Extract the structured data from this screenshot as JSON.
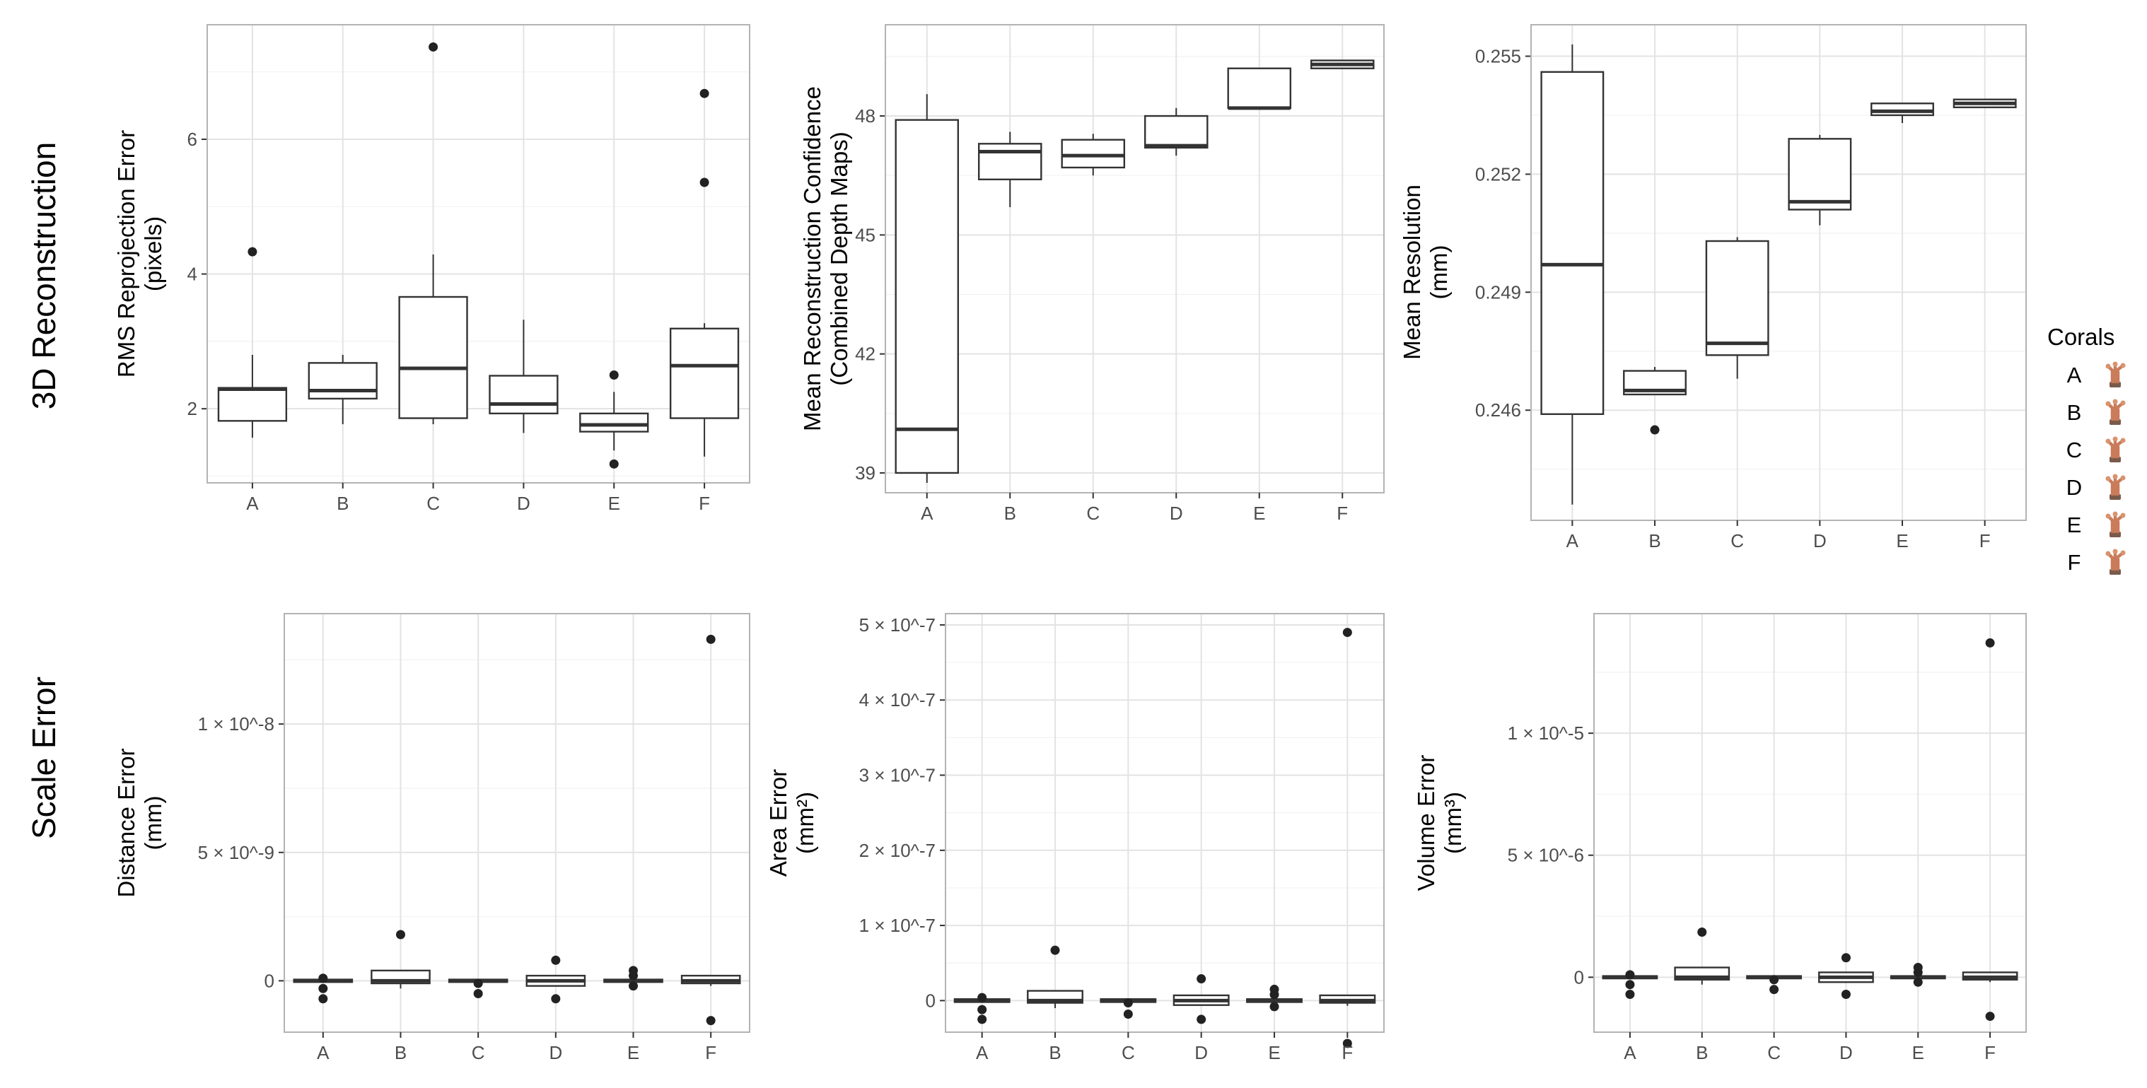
{
  "row_labels": [
    "3D Reconstruction",
    "Scale Error"
  ],
  "legend": {
    "title": "Corals",
    "entries": [
      "A",
      "B",
      "C",
      "D",
      "E",
      "F"
    ],
    "icon": "coral-icon"
  },
  "colors": {
    "panel_border": "#b3b3b3",
    "grid_major": "#e3e3e3",
    "grid_minor": "#f2f2f2",
    "box_line": "#333333",
    "point": "#222222",
    "coral": "#c97b5a"
  },
  "chart_data": [
    {
      "type": "boxplot",
      "id": "rms",
      "title": "",
      "xlabel": "",
      "ylabel": [
        "RMS Reprojection Error",
        "(pixels)"
      ],
      "categories": [
        "A",
        "B",
        "C",
        "D",
        "E",
        "F"
      ],
      "ylim": [
        0.9,
        7.7
      ],
      "yticks": [
        2,
        4,
        6
      ],
      "ytick_labels": [
        "2",
        "4",
        "6"
      ],
      "boxes": [
        {
          "q1": 1.82,
          "median": 2.29,
          "q3": 2.31,
          "whisker_low": 1.57,
          "whisker_high": 2.8,
          "outliers": [
            4.33
          ]
        },
        {
          "q1": 2.15,
          "median": 2.27,
          "q3": 2.68,
          "whisker_low": 1.77,
          "whisker_high": 2.8,
          "outliers": []
        },
        {
          "q1": 1.86,
          "median": 2.6,
          "q3": 3.66,
          "whisker_low": 1.77,
          "whisker_high": 4.29,
          "outliers": [
            7.37
          ]
        },
        {
          "q1": 1.93,
          "median": 2.07,
          "q3": 2.49,
          "whisker_low": 1.64,
          "whisker_high": 3.32,
          "outliers": []
        },
        {
          "q1": 1.66,
          "median": 1.76,
          "q3": 1.93,
          "whisker_low": 1.38,
          "whisker_high": 2.25,
          "outliers": [
            2.5,
            1.18
          ]
        },
        {
          "q1": 1.86,
          "median": 2.64,
          "q3": 3.19,
          "whisker_low": 1.29,
          "whisker_high": 3.27,
          "outliers": [
            5.36,
            6.68
          ]
        }
      ]
    },
    {
      "type": "boxplot",
      "id": "confidence",
      "title": "",
      "xlabel": "",
      "ylabel": [
        "Mean Reconstruction Confidence",
        "(Combined Depth Maps)"
      ],
      "categories": [
        "A",
        "B",
        "C",
        "D",
        "E",
        "F"
      ],
      "ylim": [
        38.5,
        50.3
      ],
      "yticks": [
        39,
        42,
        45,
        48
      ],
      "ytick_labels": [
        "39",
        "42",
        "45",
        "48"
      ],
      "boxes": [
        {
          "q1": 39.0,
          "median": 40.1,
          "q3": 47.9,
          "whisker_low": 38.75,
          "whisker_high": 48.55,
          "outliers": []
        },
        {
          "q1": 46.4,
          "median": 47.1,
          "q3": 47.3,
          "whisker_low": 45.7,
          "whisker_high": 47.6,
          "outliers": []
        },
        {
          "q1": 46.7,
          "median": 47.0,
          "q3": 47.4,
          "whisker_low": 46.5,
          "whisker_high": 47.55,
          "outliers": []
        },
        {
          "q1": 47.2,
          "median": 47.25,
          "q3": 48.0,
          "whisker_low": 47.0,
          "whisker_high": 48.2,
          "outliers": []
        },
        {
          "q1": 48.2,
          "median": 48.2,
          "q3": 49.2,
          "whisker_low": 48.2,
          "whisker_high": 49.2,
          "outliers": []
        },
        {
          "q1": 49.2,
          "median": 49.3,
          "q3": 49.4,
          "whisker_low": 49.2,
          "whisker_high": 49.4,
          "outliers": []
        }
      ]
    },
    {
      "type": "boxplot",
      "id": "resolution",
      "title": "",
      "xlabel": "",
      "ylabel": [
        "Mean Resolution",
        "(mm)"
      ],
      "categories": [
        "A",
        "B",
        "C",
        "D",
        "E",
        "F"
      ],
      "ylim": [
        0.2432,
        0.2558
      ],
      "yticks": [
        0.246,
        0.249,
        0.252,
        0.255
      ],
      "ytick_labels": [
        "0.246",
        "0.249",
        "0.252",
        "0.255"
      ],
      "boxes": [
        {
          "q1": 0.2459,
          "median": 0.2497,
          "q3": 0.2546,
          "whisker_low": 0.2436,
          "whisker_high": 0.2553,
          "outliers": []
        },
        {
          "q1": 0.2464,
          "median": 0.2465,
          "q3": 0.247,
          "whisker_low": 0.2464,
          "whisker_high": 0.2471,
          "outliers": [
            0.2455
          ]
        },
        {
          "q1": 0.2474,
          "median": 0.2477,
          "q3": 0.2503,
          "whisker_low": 0.2468,
          "whisker_high": 0.2504,
          "outliers": []
        },
        {
          "q1": 0.2511,
          "median": 0.2513,
          "q3": 0.2529,
          "whisker_low": 0.2507,
          "whisker_high": 0.253,
          "outliers": []
        },
        {
          "q1": 0.2535,
          "median": 0.2536,
          "q3": 0.2538,
          "whisker_low": 0.2533,
          "whisker_high": 0.2538,
          "outliers": []
        },
        {
          "q1": 0.2537,
          "median": 0.2538,
          "q3": 0.2539,
          "whisker_low": 0.2537,
          "whisker_high": 0.2539,
          "outliers": []
        }
      ]
    },
    {
      "type": "boxplot",
      "id": "distance",
      "title": "",
      "xlabel": "",
      "ylabel": [
        "Distance Error",
        "(mm)"
      ],
      "categories": [
        "A",
        "B",
        "C",
        "D",
        "E",
        "F"
      ],
      "ylim": [
        -2e-09,
        1.43e-08
      ],
      "yticks": [
        0,
        5e-09,
        1e-08
      ],
      "ytick_labels": [
        "0",
        "5 × 10^-9",
        "1 × 10^-8"
      ],
      "boxes": [
        {
          "q1": -5e-11,
          "median": 0,
          "q3": 5e-11,
          "whisker_low": -5e-11,
          "whisker_high": 5e-11,
          "outliers": [
            1e-10,
            -3e-10,
            -7e-10
          ]
        },
        {
          "q1": -1e-10,
          "median": 0,
          "q3": 4e-10,
          "whisker_low": -3e-10,
          "whisker_high": 4e-10,
          "outliers": [
            1.8e-09
          ]
        },
        {
          "q1": -5e-11,
          "median": 0,
          "q3": 5e-11,
          "whisker_low": -5e-11,
          "whisker_high": 5e-11,
          "outliers": [
            -1e-10,
            -5e-10
          ]
        },
        {
          "q1": -2e-10,
          "median": 0,
          "q3": 2e-10,
          "whisker_low": -2e-10,
          "whisker_high": 2e-10,
          "outliers": [
            8e-10,
            -7e-10
          ]
        },
        {
          "q1": -5e-11,
          "median": 0,
          "q3": 5e-11,
          "whisker_low": -5e-11,
          "whisker_high": 5e-11,
          "outliers": [
            4e-10,
            2e-10,
            -2e-10
          ]
        },
        {
          "q1": -1e-10,
          "median": 0,
          "q3": 2e-10,
          "whisker_low": -2e-10,
          "whisker_high": 2e-10,
          "outliers": [
            1.33e-08,
            -1.55e-09
          ]
        }
      ]
    },
    {
      "type": "boxplot",
      "id": "area",
      "title": "",
      "xlabel": "",
      "ylabel": [
        "Area Error",
        "(mm²)"
      ],
      "categories": [
        "A",
        "B",
        "C",
        "D",
        "E",
        "F"
      ],
      "ylim": [
        -4.2e-08,
        5.15e-07
      ],
      "yticks": [
        0,
        1e-07,
        2e-07,
        3e-07,
        4e-07,
        5e-07
      ],
      "ytick_labels": [
        "0",
        "1 × 10^-7",
        "2 × 10^-7",
        "3 × 10^-7",
        "4 × 10^-7",
        "5 × 10^-7"
      ],
      "boxes": [
        {
          "q1": -2e-09,
          "median": 0,
          "q3": 2e-09,
          "whisker_low": -2e-09,
          "whisker_high": 2e-09,
          "outliers": [
            4e-09,
            -1.2e-08,
            -2.5e-08
          ]
        },
        {
          "q1": -3e-09,
          "median": 0,
          "q3": 1.3e-08,
          "whisker_low": -1e-08,
          "whisker_high": 1.3e-08,
          "outliers": [
            6.7e-08
          ]
        },
        {
          "q1": -2e-09,
          "median": 0,
          "q3": 2e-09,
          "whisker_low": -2e-09,
          "whisker_high": 2e-09,
          "outliers": [
            -3e-09,
            -1.8e-08
          ]
        },
        {
          "q1": -6e-09,
          "median": 0,
          "q3": 7e-09,
          "whisker_low": -6e-09,
          "whisker_high": 7e-09,
          "outliers": [
            2.9e-08,
            -2.5e-08
          ]
        },
        {
          "q1": -2e-09,
          "median": 0,
          "q3": 2e-09,
          "whisker_low": -2e-09,
          "whisker_high": 2e-09,
          "outliers": [
            1.5e-08,
            8e-09,
            -8e-09
          ]
        },
        {
          "q1": -3e-09,
          "median": 0,
          "q3": 7e-09,
          "whisker_low": -7e-09,
          "whisker_high": 7e-09,
          "outliers": [
            4.9e-07,
            -5.7e-08
          ]
        }
      ]
    },
    {
      "type": "boxplot",
      "id": "volume",
      "title": "",
      "xlabel": "",
      "ylabel": [
        "Volume Error",
        "(mm³)"
      ],
      "categories": [
        "A",
        "B",
        "C",
        "D",
        "E",
        "F"
      ],
      "ylim": [
        -2.25e-06,
        1.49e-05
      ],
      "yticks": [
        0,
        5e-06,
        1e-05
      ],
      "ytick_labels": [
        "0",
        "5 × 10^-6",
        "1 × 10^-5"
      ],
      "boxes": [
        {
          "q1": -5e-08,
          "median": 0,
          "q3": 5e-08,
          "whisker_low": -5e-08,
          "whisker_high": 5e-08,
          "outliers": [
            1e-07,
            -3e-07,
            -7e-07
          ]
        },
        {
          "q1": -1e-07,
          "median": 0,
          "q3": 4e-07,
          "whisker_low": -3e-07,
          "whisker_high": 4e-07,
          "outliers": [
            1.85e-06
          ]
        },
        {
          "q1": -5e-08,
          "median": 0,
          "q3": 5e-08,
          "whisker_low": -5e-08,
          "whisker_high": 5e-08,
          "outliers": [
            -1e-07,
            -5e-07
          ]
        },
        {
          "q1": -2e-07,
          "median": 0,
          "q3": 2e-07,
          "whisker_low": -2e-07,
          "whisker_high": 2e-07,
          "outliers": [
            8e-07,
            -7e-07
          ]
        },
        {
          "q1": -5e-08,
          "median": 0,
          "q3": 5e-08,
          "whisker_low": -5e-08,
          "whisker_high": 5e-08,
          "outliers": [
            4e-07,
            2e-07,
            -2e-07
          ]
        },
        {
          "q1": -1e-07,
          "median": 0,
          "q3": 2e-07,
          "whisker_low": -2e-07,
          "whisker_high": 2e-07,
          "outliers": [
            1.37e-05,
            -1.6e-06
          ]
        }
      ]
    }
  ]
}
